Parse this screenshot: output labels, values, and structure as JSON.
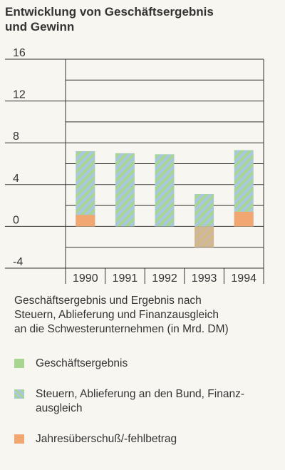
{
  "title_line1": "Entwicklung von Geschäftsergebnis",
  "title_line2": "und Gewinn",
  "description_line1": "Geschäftsergebnis und Ergebnis nach",
  "description_line2": "Steuern, Ablieferung und Finanzausgleich",
  "description_line3": "an die Schwesterunternehmen (in Mrd. DM)",
  "legend": [
    {
      "label": "Geschäftsergebnis",
      "pattern": "solid-green"
    },
    {
      "label": "Steuern, Ablieferung an den Bund, Finanz-",
      "label2": "ausgleich",
      "pattern": "hatched-blue"
    },
    {
      "label": "Jahresüberschuß/-fehlbetrag",
      "pattern": "solid-orange"
    }
  ],
  "colors": {
    "green": "#a7d690",
    "blue": "#a9c6e2",
    "orange": "#f2a772",
    "grid": "#333333"
  },
  "chart_data": {
    "type": "bar",
    "categories": [
      "1990",
      "1991",
      "1992",
      "1993",
      "1994"
    ],
    "y_ticks": [
      "16",
      "12",
      "8",
      "4",
      "0",
      "-4"
    ],
    "ylim": [
      -4,
      16
    ],
    "series": [
      {
        "name": "Geschäftsergebnis",
        "values": [
          7.2,
          7.0,
          6.9,
          3.1,
          7.3
        ]
      },
      {
        "name": "Steuern, Ablieferung an den Bund, Finanzausgleich",
        "values": [
          7.2,
          7.0,
          6.9,
          -2.0,
          7.3
        ]
      },
      {
        "name": "Jahresüberschuß/-fehlbetrag",
        "values": [
          1.1,
          0.0,
          0.0,
          -1.9,
          1.4
        ]
      }
    ]
  }
}
